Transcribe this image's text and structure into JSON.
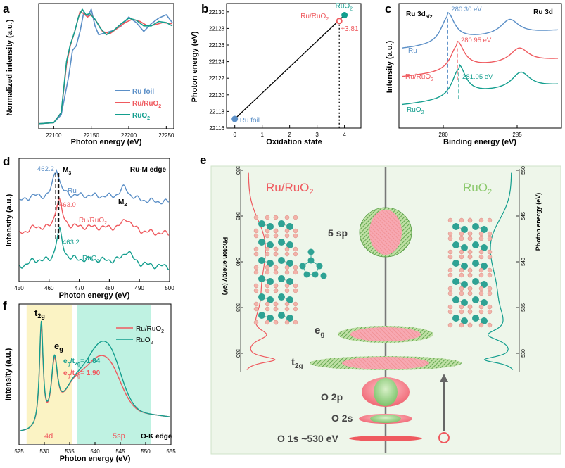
{
  "colors": {
    "ru": "#5b8fc7",
    "ruruo2": "#ef5a5f",
    "ruo2": "#139e8e",
    "black": "#111111"
  },
  "panels": {
    "a": "a",
    "b": "b",
    "c": "c",
    "d": "d",
    "e": "e",
    "f": "f"
  },
  "chart_data": [
    {
      "id": "a",
      "type": "line",
      "xlabel": "Photon energy (eV)",
      "ylabel": "Normalized intensity (a.u.)",
      "xlim": [
        22080,
        22260
      ],
      "xticks": [
        "22100",
        "22150",
        "22200",
        "22250"
      ],
      "legend": [
        "Ru foil",
        "Ru/RuO",
        "RuO"
      ],
      "series": [
        {
          "name": "Ru foil",
          "x": [
            22080,
            22100,
            22110,
            22120,
            22125,
            22130,
            22135,
            22140,
            22145,
            22150,
            22155,
            22160,
            22170,
            22180,
            22190,
            22200,
            22210,
            22220,
            22230,
            22240,
            22250,
            22258
          ],
          "y": [
            0.02,
            0.03,
            0.1,
            0.45,
            0.68,
            0.72,
            0.85,
            1.02,
            0.98,
            1.05,
            0.9,
            0.82,
            0.84,
            0.86,
            0.9,
            0.98,
            0.93,
            0.85,
            0.92,
            0.97,
            1.0,
            0.93
          ]
        },
        {
          "name": "Ru/RuO2",
          "x": [
            22080,
            22100,
            22110,
            22117,
            22122,
            22128,
            22135,
            22140,
            22145,
            22150,
            22158,
            22165,
            22175,
            22185,
            22195,
            22205,
            22215,
            22225,
            22235,
            22245,
            22258
          ],
          "y": [
            0.02,
            0.03,
            0.12,
            0.55,
            0.72,
            0.85,
            1.03,
            1.01,
            0.98,
            1.0,
            0.93,
            0.85,
            0.83,
            0.88,
            0.93,
            0.96,
            0.94,
            0.9,
            0.91,
            0.93,
            0.92
          ]
        },
        {
          "name": "RuO2",
          "x": [
            22080,
            22100,
            22110,
            22117,
            22122,
            22128,
            22133,
            22138,
            22143,
            22148,
            22155,
            22162,
            22170,
            22180,
            22190,
            22200,
            22210,
            22220,
            22230,
            22240,
            22250,
            22258
          ],
          "y": [
            0.02,
            0.03,
            0.12,
            0.58,
            0.73,
            0.85,
            0.98,
            1.05,
            1.0,
            1.01,
            0.96,
            0.88,
            0.82,
            0.86,
            0.92,
            0.97,
            0.95,
            0.9,
            0.9,
            0.94,
            0.93,
            0.9
          ]
        }
      ]
    },
    {
      "id": "b",
      "type": "scatter",
      "xlabel": "Oxidation state",
      "ylabel": "Photon energy (eV)",
      "xlim": [
        -0.3,
        4.6
      ],
      "ylim": [
        22116,
        22131
      ],
      "xticks": [
        "0",
        "1",
        "2",
        "3",
        "4"
      ],
      "yticks": [
        "22116",
        "22118",
        "22120",
        "22122",
        "22124",
        "22126",
        "22128",
        "22130"
      ],
      "points": [
        {
          "name": "Ru foil",
          "x": 0,
          "y": 22117.1
        },
        {
          "name": "Ru/RuO",
          "x": 3.81,
          "y": 22128.9
        },
        {
          "name": "RuO",
          "x": 4,
          "y": 22129.6
        }
      ],
      "annotation": "+3.81"
    },
    {
      "id": "c",
      "type": "line",
      "title": "Ru 3d",
      "peak_label": "Ru 3d",
      "peak_sub": "5/2",
      "xlabel": "Binding energy (eV)",
      "ylabel": "Intensity (a.u.)",
      "xlim": [
        277,
        288
      ],
      "xticks": [
        "280",
        "285"
      ],
      "series_labels": [
        "Ru",
        "Ru/RuO",
        "RuO"
      ],
      "peaks": [
        {
          "name": "Ru",
          "pos": 280.3,
          "label": "280.30 eV"
        },
        {
          "name": "Ru/RuO2",
          "pos": 280.95,
          "label": "280.95 eV"
        },
        {
          "name": "RuO2",
          "pos": 281.05,
          "label": "281.05 eV"
        }
      ]
    },
    {
      "id": "d",
      "type": "line",
      "title": "Ru-M edge",
      "xlabel": "Photon energy (eV)",
      "ylabel": "Intensity (a.u.)",
      "xlim": [
        450,
        500
      ],
      "xticks": [
        "450",
        "460",
        "470",
        "480",
        "490",
        "500"
      ],
      "series_labels": [
        "Ru",
        "Ru/RuO",
        "RuO"
      ],
      "peaks": [
        {
          "name": "Ru",
          "pos": 462.2,
          "label": "462.2"
        },
        {
          "name": "Ru/RuO2",
          "pos": 463.0,
          "label": "463.0"
        },
        {
          "name": "RuO2",
          "pos": 463.2,
          "label": "463.2"
        }
      ],
      "m3": "M",
      "m3_sub": "3",
      "m2": "M",
      "m2_sub": "2"
    },
    {
      "id": "f",
      "type": "line",
      "xlabel": "Photon energy (eV)",
      "ylabel": "Intensity (a.u.)",
      "xlim": [
        525,
        555
      ],
      "xticks": [
        "525",
        "530",
        "535",
        "540",
        "545",
        "550",
        "555"
      ],
      "legend": [
        "Ru/RuO",
        "RuO"
      ],
      "region_labels": [
        "4d",
        "5sp",
        "O-K edge"
      ],
      "t2g": "t",
      "t2g_sub": "2g",
      "eg": "e",
      "eg_sub": "g",
      "ratio_ruo2": "= 1.84",
      "ratio_ruruo2": "= 1.90"
    },
    {
      "id": "e",
      "type": "diagram",
      "title_left": "Ru/RuO",
      "title_right": "RuO",
      "ylabel": "Photon energy (eV)",
      "yticks": [
        "550",
        "545",
        "540",
        "535",
        "530"
      ],
      "levels": [
        "5 sp",
        "e",
        "t",
        "O 2p",
        "O 2s",
        "O 1s ~530 eV"
      ],
      "sub_eg": "g",
      "sub_t2g": "2g"
    }
  ],
  "subscripts": {
    "two": "2"
  }
}
